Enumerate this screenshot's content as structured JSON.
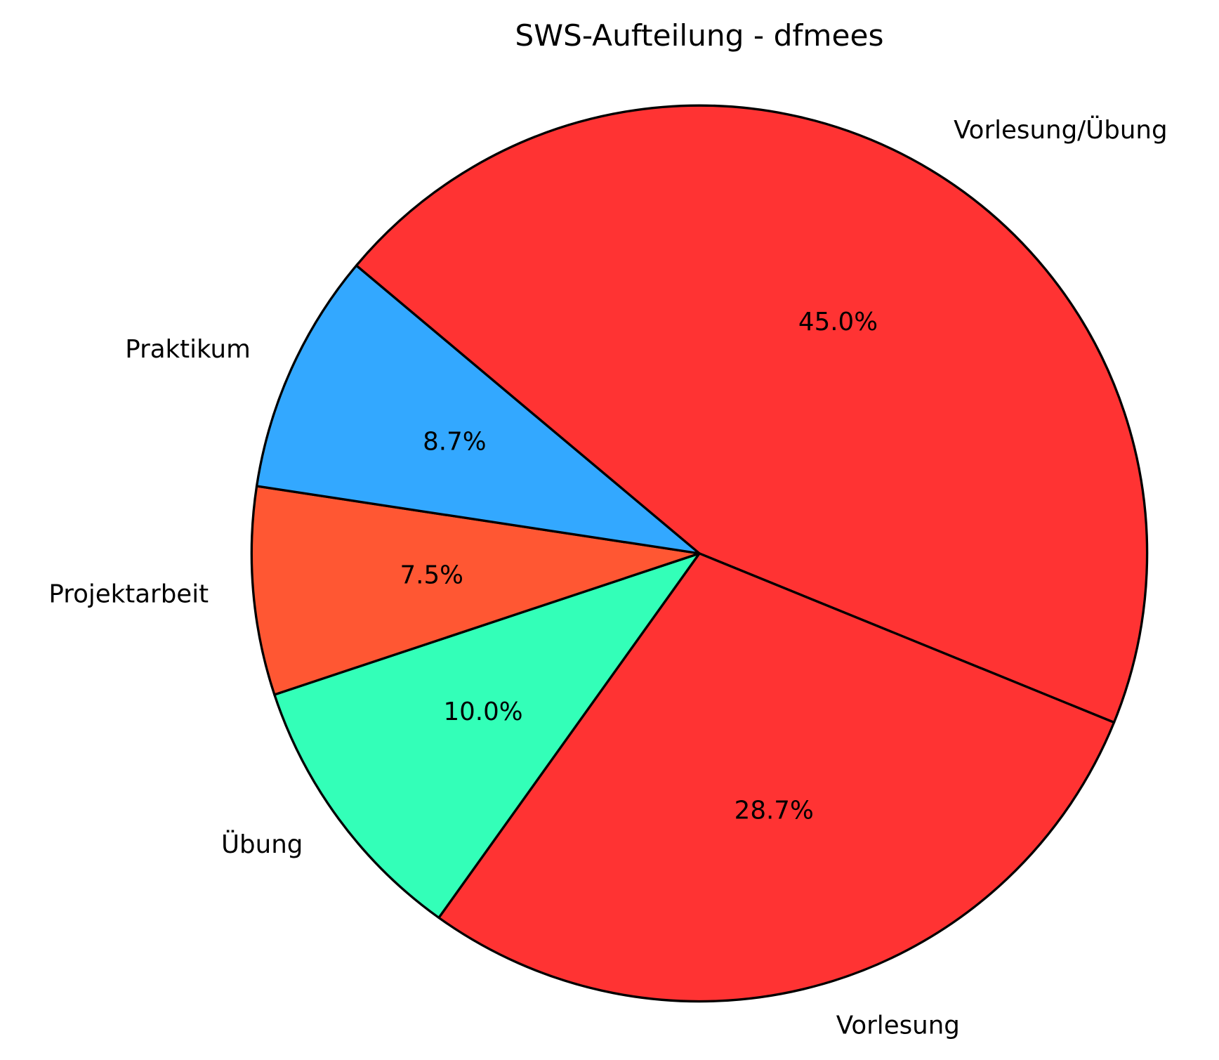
{
  "chart_data": {
    "type": "pie",
    "title": "SWS-Aufteilung - dfmees",
    "categories": [
      "Vorlesung/Übung",
      "Vorlesung",
      "Übung",
      "Projektarbeit",
      "Praktikum"
    ],
    "values": [
      45.0,
      28.7,
      10.0,
      7.5,
      8.7
    ],
    "value_labels": [
      "45.0%",
      "28.7%",
      "10.0%",
      "7.5%",
      "8.7%"
    ],
    "colors": [
      "#ff3333",
      "#ff3333",
      "#33ffb8",
      "#ff5733",
      "#33a8ff"
    ],
    "start_angle": 140,
    "clockwise": true
  }
}
